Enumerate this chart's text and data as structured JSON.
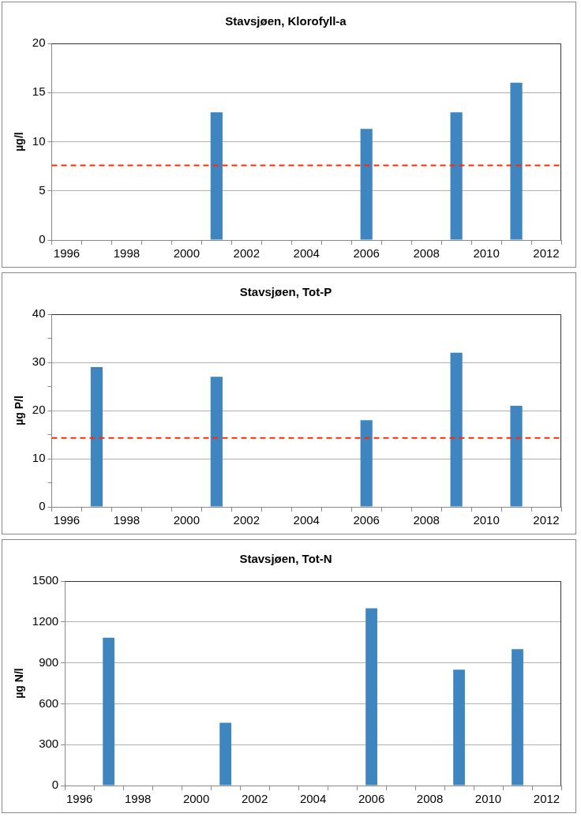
{
  "chart_data": [
    {
      "type": "bar",
      "title": "Stavsjøen, Klorofyll-a",
      "ylabel": "µg/l",
      "categories": [
        "1996",
        null,
        "1998",
        null,
        "2000",
        null,
        "2002",
        null,
        "2004",
        null,
        "2006",
        null,
        "2008",
        null,
        "2010",
        null,
        "2012"
      ],
      "values": [
        null,
        null,
        null,
        null,
        null,
        13,
        null,
        null,
        null,
        null,
        11.3,
        null,
        null,
        13,
        null,
        16,
        null
      ],
      "color": "#3f86c1",
      "ylim": [
        0,
        20
      ],
      "yticks": [
        0,
        5,
        10,
        15,
        20
      ],
      "grid": "y",
      "legend": false,
      "ref_lines": [
        {
          "axis": "y",
          "value": 7.6,
          "color": "#ff2a00",
          "line_style": "dashed"
        }
      ]
    },
    {
      "type": "bar",
      "title": "Stavsjøen, Tot-P",
      "ylabel": "µg P/l",
      "categories": [
        "1996",
        null,
        "1998",
        null,
        "2000",
        null,
        "2002",
        null,
        "2004",
        null,
        "2006",
        null,
        "2008",
        null,
        "2010",
        null,
        "2012"
      ],
      "values": [
        null,
        29,
        null,
        null,
        null,
        27,
        null,
        null,
        null,
        null,
        18,
        null,
        null,
        32,
        null,
        21,
        null
      ],
      "color": "#3f86c1",
      "ylim": [
        0,
        40
      ],
      "yticks": [
        0,
        {
          "value": 5,
          "label": null
        },
        10,
        {
          "value": 15,
          "label": null
        },
        20,
        {
          "value": 25,
          "label": null
        },
        30,
        {
          "value": 35,
          "label": null
        },
        40
      ],
      "grid": "y",
      "legend": false,
      "ref_lines": [
        {
          "axis": "y",
          "value": 14.3,
          "color": "#ff2a00",
          "line_style": "dashed"
        }
      ]
    },
    {
      "type": "bar",
      "title": "Stavsjøen, Tot-N",
      "ylabel": "µg N/l",
      "categories": [
        "1996",
        null,
        "1998",
        null,
        "2000",
        null,
        "2002",
        null,
        "2004",
        null,
        "2006",
        null,
        "2008",
        null,
        "2010",
        null,
        "2012"
      ],
      "values": [
        null,
        1085,
        null,
        null,
        null,
        460,
        null,
        null,
        null,
        null,
        1300,
        null,
        null,
        850,
        null,
        1000,
        null
      ],
      "color": "#3f86c1",
      "ylim": [
        0,
        1500
      ],
      "yticks": [
        0,
        300,
        600,
        900,
        1200,
        1500
      ],
      "grid": "y",
      "legend": false
    }
  ]
}
